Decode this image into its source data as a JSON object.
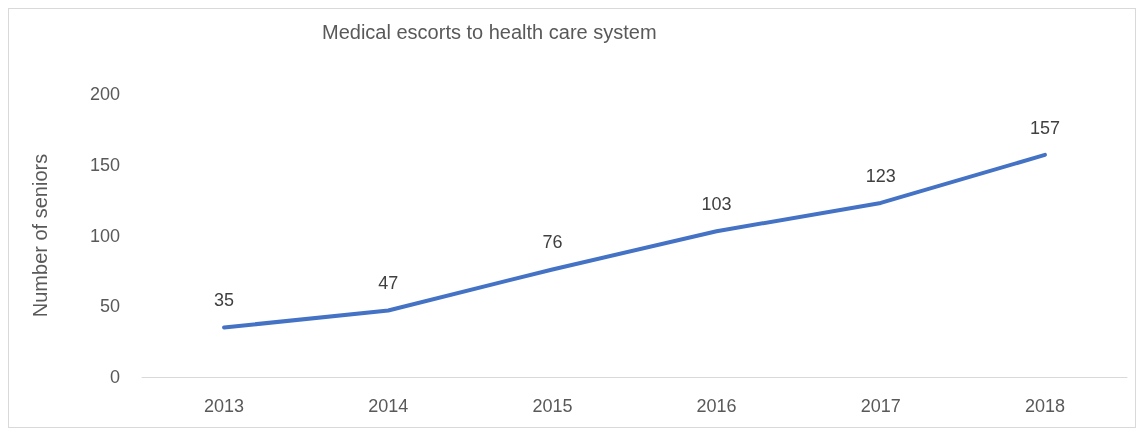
{
  "chart_data": {
    "type": "line",
    "title": "Medical escorts to health care system",
    "ylabel": "Number of seniors",
    "categories": [
      "2013",
      "2014",
      "2015",
      "2016",
      "2017",
      "2018"
    ],
    "series": [
      {
        "color": "#4472c4",
        "values": [
          35,
          47,
          76,
          103,
          123,
          157
        ]
      }
    ],
    "ylim": [
      0,
      200
    ],
    "yticks": [
      0,
      50,
      100,
      150,
      200
    ],
    "grid": false,
    "marker": "none",
    "line_style": "solid",
    "data_labels": true
  }
}
